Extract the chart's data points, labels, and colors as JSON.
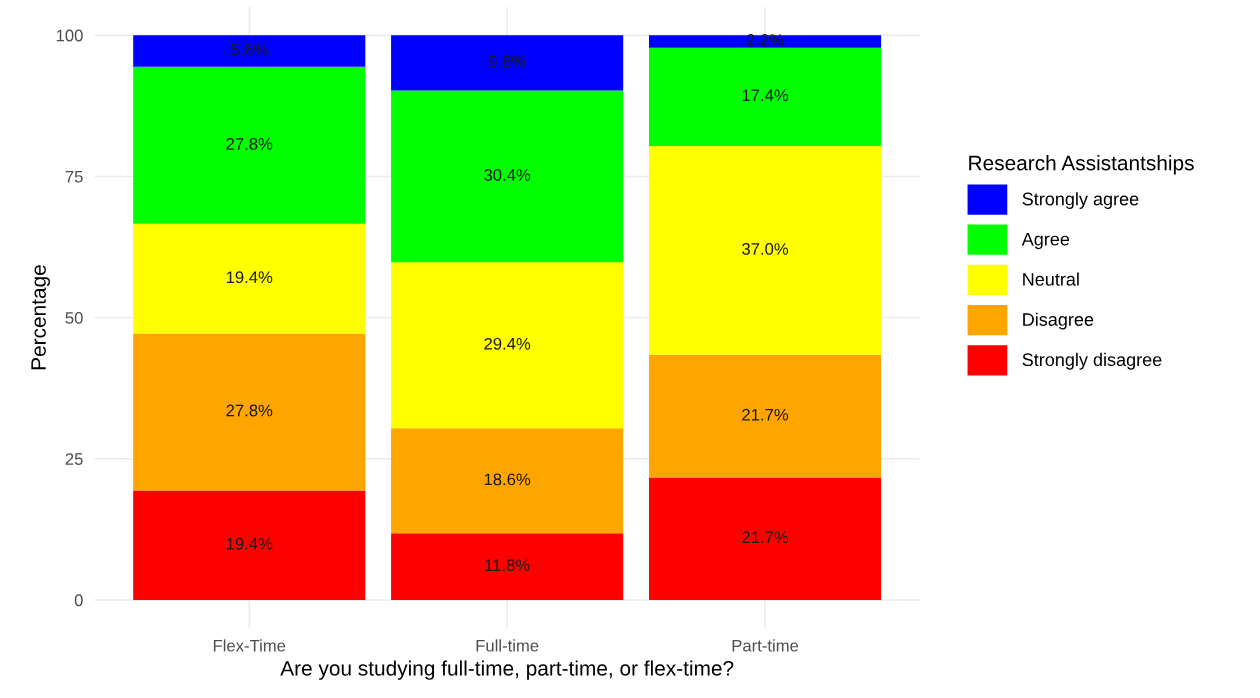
{
  "chart_data": {
    "type": "bar",
    "stacked": true,
    "xlabel": "Are you studying full-time, part-time, or flex-time?",
    "ylabel": "Percentage",
    "legend_title": "Research Assistantships",
    "legend": "right",
    "categories": [
      "Flex-Time",
      "Full-time",
      "Part-time"
    ],
    "ylim": [
      -5,
      105
    ],
    "yticks": [
      0,
      25,
      50,
      75,
      100
    ],
    "grid": true,
    "series": [
      {
        "name": "Strongly disagree",
        "color": "#ff0000",
        "values": [
          19.4,
          11.8,
          21.7
        ],
        "value_labels": [
          "19.4%",
          "11.8%",
          "21.7%"
        ]
      },
      {
        "name": "Disagree",
        "color": "#ffa500",
        "values": [
          27.8,
          18.6,
          21.7
        ],
        "value_labels": [
          "27.8%",
          "18.6%",
          "21.7%"
        ]
      },
      {
        "name": "Neutral",
        "color": "#ffff00",
        "values": [
          19.4,
          29.4,
          37.0
        ],
        "value_labels": [
          "19.4%",
          "29.4%",
          "37.0%"
        ]
      },
      {
        "name": "Agree",
        "color": "#00ff00",
        "values": [
          27.8,
          30.4,
          17.4
        ],
        "value_labels": [
          "27.8%",
          "30.4%",
          "17.4%"
        ]
      },
      {
        "name": "Strongly agree",
        "color": "#0000ff",
        "values": [
          5.6,
          9.8,
          2.2
        ],
        "value_labels": [
          "5.6%",
          "9.8%",
          "2.2%"
        ]
      }
    ]
  }
}
